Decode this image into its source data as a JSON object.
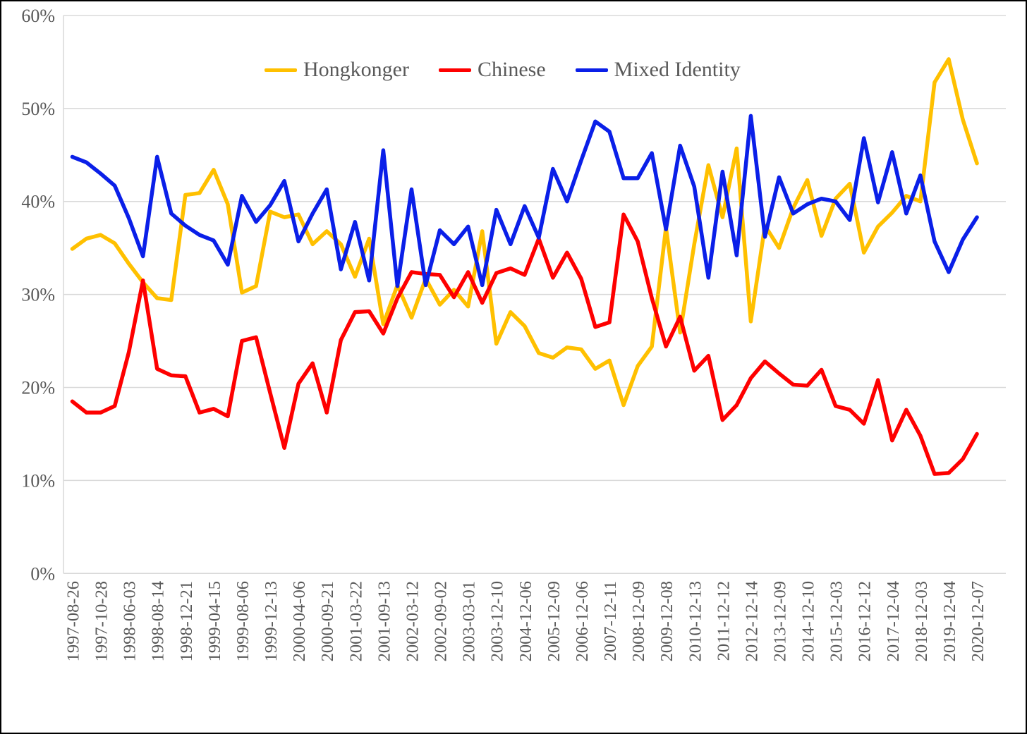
{
  "chart_data": {
    "type": "line",
    "title": "",
    "xlabel": "",
    "ylabel": "",
    "ylim": [
      0,
      60
    ],
    "y_tick_labels": [
      "0%",
      "10%",
      "20%",
      "30%",
      "40%",
      "50%",
      "60%"
    ],
    "grid": "horizontal",
    "grid_color": "#d9d9d9",
    "axis_color": "#d9d9d9",
    "text_color": "#595959",
    "legend_position": "top-center",
    "n_points": 65,
    "label_step": 2,
    "x_labels": [
      "1997-08-26",
      "1997-10-28",
      "1998-06-03",
      "1998-08-14",
      "1998-12-21",
      "1999-04-15",
      "1999-08-06",
      "1999-12-13",
      "2000-04-06",
      "2000-09-21",
      "2001-03-22",
      "2001-09-13",
      "2002-03-12",
      "2002-09-02",
      "2003-03-01",
      "2003-12-10",
      "2004-12-06",
      "2005-12-09",
      "2006-12-06",
      "2007-12-11",
      "2008-12-09",
      "2009-12-08",
      "2010-12-13",
      "2011-12-12",
      "2012-12-14",
      "2013-12-09",
      "2014-12-10",
      "2015-12-03",
      "2016-12-12",
      "2017-12-04",
      "2018-12-03",
      "2019-12-04",
      "2020-12-07"
    ],
    "series": [
      {
        "name": "Hongkonger",
        "color": "#ffc000",
        "values": [
          34.9,
          36.0,
          36.4,
          35.5,
          33.3,
          31.3,
          29.6,
          29.4,
          40.7,
          40.9,
          43.4,
          39.7,
          30.2,
          30.9,
          38.9,
          38.3,
          38.6,
          35.4,
          36.8,
          35.4,
          31.9,
          36.0,
          26.8,
          31.0,
          27.5,
          31.7,
          28.9,
          30.5,
          28.7,
          36.8,
          24.7,
          28.1,
          26.6,
          23.7,
          23.2,
          24.3,
          24.1,
          22.0,
          22.9,
          18.1,
          22.3,
          24.4,
          37.2,
          25.9,
          35.4,
          43.9,
          38.3,
          45.7,
          27.1,
          37.4,
          35.0,
          39.3,
          42.3,
          36.3,
          40.3,
          41.9,
          34.5,
          37.3,
          38.8,
          40.6,
          40.0,
          52.8,
          55.3,
          48.8,
          44.1
        ]
      },
      {
        "name": "Chinese",
        "color": "#fe0000",
        "values": [
          18.5,
          17.3,
          17.3,
          18.0,
          23.8,
          31.5,
          22.0,
          21.3,
          21.2,
          17.3,
          17.7,
          16.9,
          25.0,
          25.4,
          19.4,
          13.5,
          20.4,
          22.6,
          17.3,
          25.1,
          28.1,
          28.2,
          25.8,
          29.6,
          32.4,
          32.2,
          32.1,
          29.7,
          32.4,
          29.1,
          32.3,
          32.8,
          32.1,
          36.0,
          31.8,
          34.5,
          31.7,
          26.5,
          27.0,
          38.6,
          35.7,
          29.6,
          24.4,
          27.6,
          21.8,
          23.4,
          16.5,
          18.1,
          21.0,
          22.8,
          21.5,
          20.3,
          20.2,
          21.9,
          18.0,
          17.6,
          16.1,
          20.8,
          14.3,
          17.6,
          14.8,
          10.7,
          10.8,
          12.3,
          15.0
        ]
      },
      {
        "name": "Mixed Identity",
        "color": "#0a1fe8",
        "values": [
          44.8,
          44.2,
          43.0,
          41.7,
          38.2,
          34.1,
          44.8,
          38.7,
          37.4,
          36.4,
          35.8,
          33.2,
          40.6,
          37.8,
          39.6,
          42.2,
          35.7,
          38.7,
          41.3,
          32.7,
          37.8,
          31.5,
          45.5,
          30.9,
          41.3,
          31.0,
          36.9,
          35.4,
          37.3,
          31.0,
          39.1,
          35.4,
          39.5,
          36.1,
          43.5,
          40.0,
          44.4,
          48.6,
          47.5,
          42.5,
          42.5,
          45.2,
          37.0,
          46.0,
          41.6,
          31.8,
          43.2,
          34.2,
          49.2,
          36.2,
          42.6,
          38.7,
          39.7,
          40.3,
          40.0,
          38.0,
          46.8,
          39.9,
          45.3,
          38.7,
          42.8,
          35.7,
          32.4,
          35.9,
          38.3
        ]
      }
    ]
  }
}
